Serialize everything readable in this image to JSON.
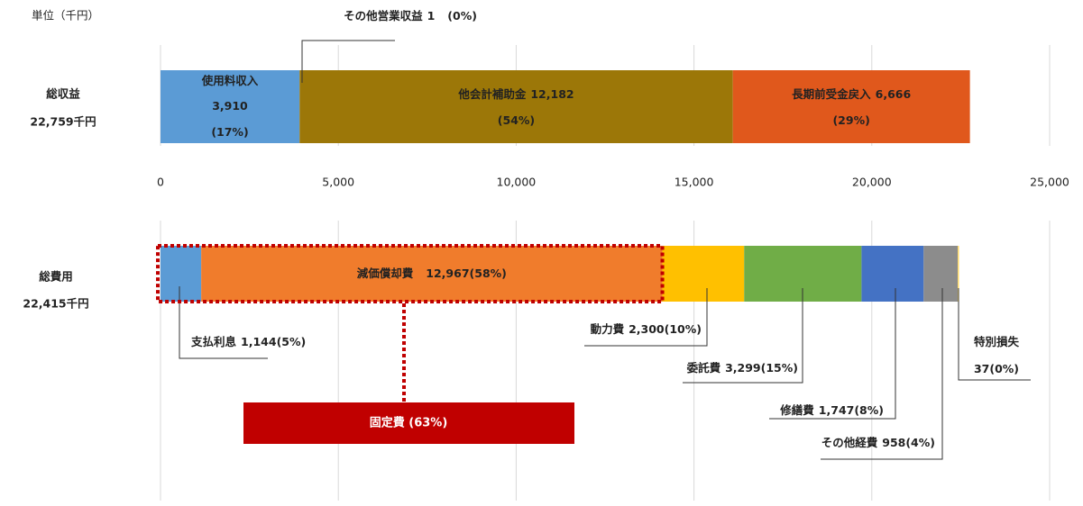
{
  "chart_data": [
    {
      "type": "stacked_bar",
      "unit_label": "単位（千円）",
      "category": "総収益",
      "total_label": "22,759千円",
      "xlim": [
        0,
        25000
      ],
      "xticks": [
        {
          "value": 0,
          "label": "0"
        },
        {
          "value": 5000,
          "label": "5,000"
        },
        {
          "value": 10000,
          "label": "10,000"
        },
        {
          "value": 15000,
          "label": "15,000"
        },
        {
          "value": 20000,
          "label": "20,000"
        },
        {
          "value": 25000,
          "label": "25,000"
        }
      ],
      "show_tick_labels": true,
      "grid": true,
      "series": [
        {
          "name": "使用料収入",
          "color": "#5b9bd5",
          "values": [
            3910
          ],
          "value_labels": [
            "3,910"
          ],
          "share_labels": [
            "(17%)"
          ]
        },
        {
          "name": "その他営業収益",
          "color": "#a5a5a5",
          "values": [
            1
          ],
          "value_labels": [
            "1"
          ],
          "share_labels": [
            "(0%)"
          ]
        },
        {
          "name": "他会計補助金",
          "color": "#9c7708",
          "values": [
            12182
          ],
          "value_labels": [
            "12,182"
          ],
          "share_labels": [
            "(54%)"
          ]
        },
        {
          "name": "長期前受金戻入",
          "color": "#e0581c",
          "values": [
            6666
          ],
          "value_labels": [
            "6,666"
          ],
          "share_labels": [
            "(29%)"
          ]
        }
      ]
    },
    {
      "type": "stacked_bar",
      "category": "総費用",
      "total_label": "22,415千円",
      "xlim": [
        0,
        25000
      ],
      "xticks": [
        0,
        5000,
        10000,
        15000,
        20000,
        25000
      ],
      "show_tick_labels": false,
      "grid": true,
      "bracket_label": "固定費 (63%)",
      "series": [
        {
          "name": "支払利息",
          "color": "#5b9bd5",
          "values": [
            1144
          ],
          "value_labels": [
            "1,144"
          ],
          "share_labels": [
            "(5%)"
          ]
        },
        {
          "name": "減価償却費",
          "color": "#f07c2c",
          "values": [
            12967
          ],
          "value_labels": [
            "12,967"
          ],
          "share_labels": [
            "(58%)"
          ]
        },
        {
          "name": "動力費",
          "color": "#ffc000",
          "values": [
            2300
          ],
          "value_labels": [
            "2,300"
          ],
          "share_labels": [
            "(10%)"
          ]
        },
        {
          "name": "委託費",
          "color": "#70ad47",
          "values": [
            3299
          ],
          "value_labels": [
            "3,299"
          ],
          "share_labels": [
            "(15%)"
          ]
        },
        {
          "name": "修繕費",
          "color": "#4472c4",
          "values": [
            1747
          ],
          "value_labels": [
            "1,747"
          ],
          "share_labels": [
            "(8%)"
          ]
        },
        {
          "name": "その他経費",
          "color": "#8c8c8c",
          "values": [
            958
          ],
          "value_labels": [
            "958"
          ],
          "share_labels": [
            "(4%)"
          ]
        },
        {
          "name": "特別損失",
          "color": "#ffd966",
          "values": [
            37
          ],
          "value_labels": [
            "37"
          ],
          "share_labels": [
            "(0%)"
          ]
        }
      ]
    }
  ]
}
